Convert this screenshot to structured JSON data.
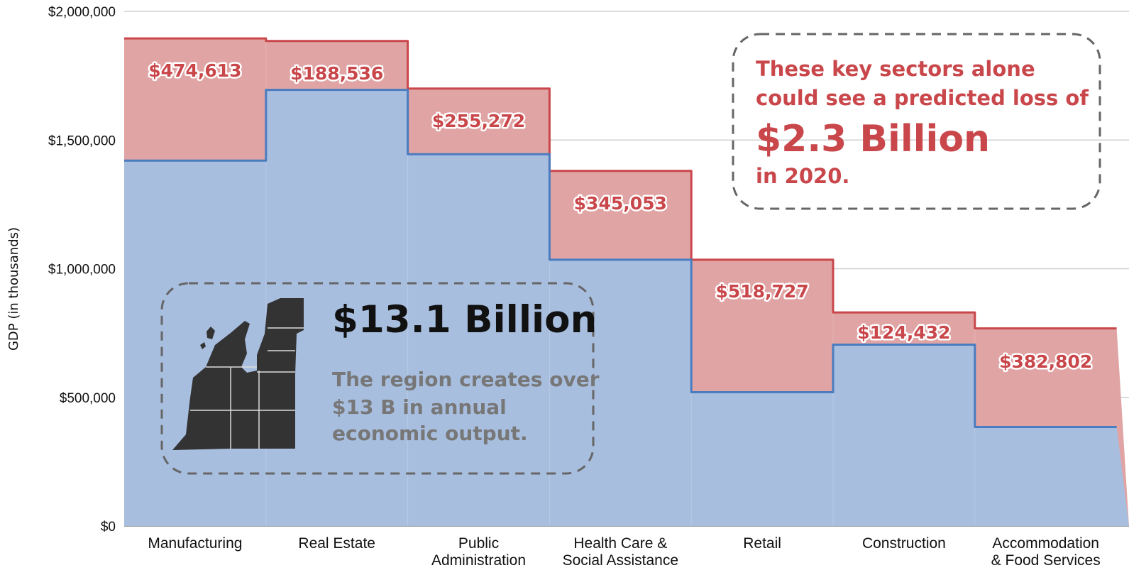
{
  "chart_data": {
    "type": "step-area",
    "ylabel": "GDP (in thousands)",
    "ylim": [
      0,
      2000000
    ],
    "yticks": [
      "$0",
      "$500,000",
      "$1,000,000",
      "$1,500,000",
      "$2,000,000"
    ],
    "ytick_values": [
      0,
      500000,
      1000000,
      1500000,
      2000000
    ],
    "grid": true,
    "categories": [
      [
        "Manufacturing"
      ],
      [
        "Real Estate"
      ],
      [
        "Public",
        "Administration"
      ],
      [
        "Health Care &",
        "Social Assistance"
      ],
      [
        "Retail"
      ],
      [
        "Construction"
      ],
      [
        "Accommodation",
        "& Food Services"
      ]
    ],
    "series": [
      {
        "values": [
          1420000,
          1695000,
          1445000,
          1035000,
          520000,
          705000,
          385000
        ],
        "color": "#a8bedf",
        "line": "#4a7cc0"
      },
      {
        "values": [
          1895000,
          1885000,
          1700000,
          1380000,
          1035000,
          830000,
          768000
        ],
        "color": "#e0a4a4",
        "line": "#c9474b"
      }
    ],
    "loss_labels": [
      "$474,613",
      "$188,536",
      "$255,272",
      "$345,053",
      "$518,727",
      "$124,432",
      "$382,802"
    ]
  },
  "callouts": {
    "loss": {
      "line1": "These key sectors alone",
      "line2": "could see a predicted loss of",
      "big": "$2.3 Billion",
      "line3": "in 2020."
    },
    "region": {
      "big": "$13.1 Billion",
      "line1": "The region creates over",
      "line2": "$13 B in annual",
      "line3": "economic output."
    }
  },
  "colors": {
    "loss_text": "#c9474b",
    "dark_text": "#111111",
    "gray_text": "#777777"
  }
}
